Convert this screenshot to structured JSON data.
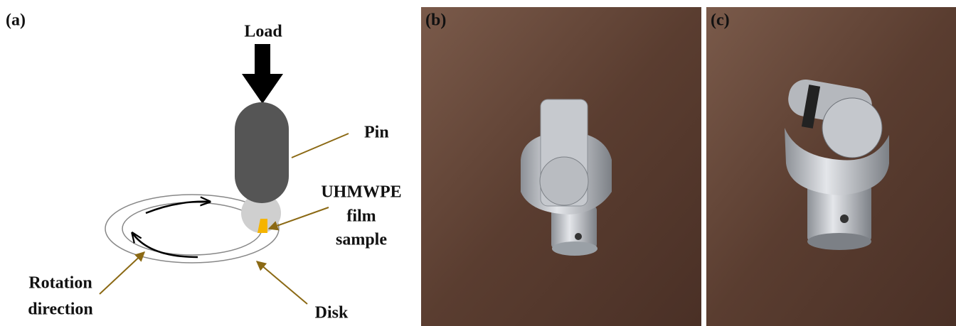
{
  "panels": [
    {
      "label": "(a)",
      "annotations": {
        "load": "Load",
        "pin": "Pin",
        "sample": [
          "UHMWPE",
          "film",
          "sample"
        ],
        "rotation": [
          "Rotation",
          "direction"
        ],
        "disk": "Disk"
      }
    },
    {
      "label": "(b)"
    },
    {
      "label": "(c)"
    }
  ]
}
